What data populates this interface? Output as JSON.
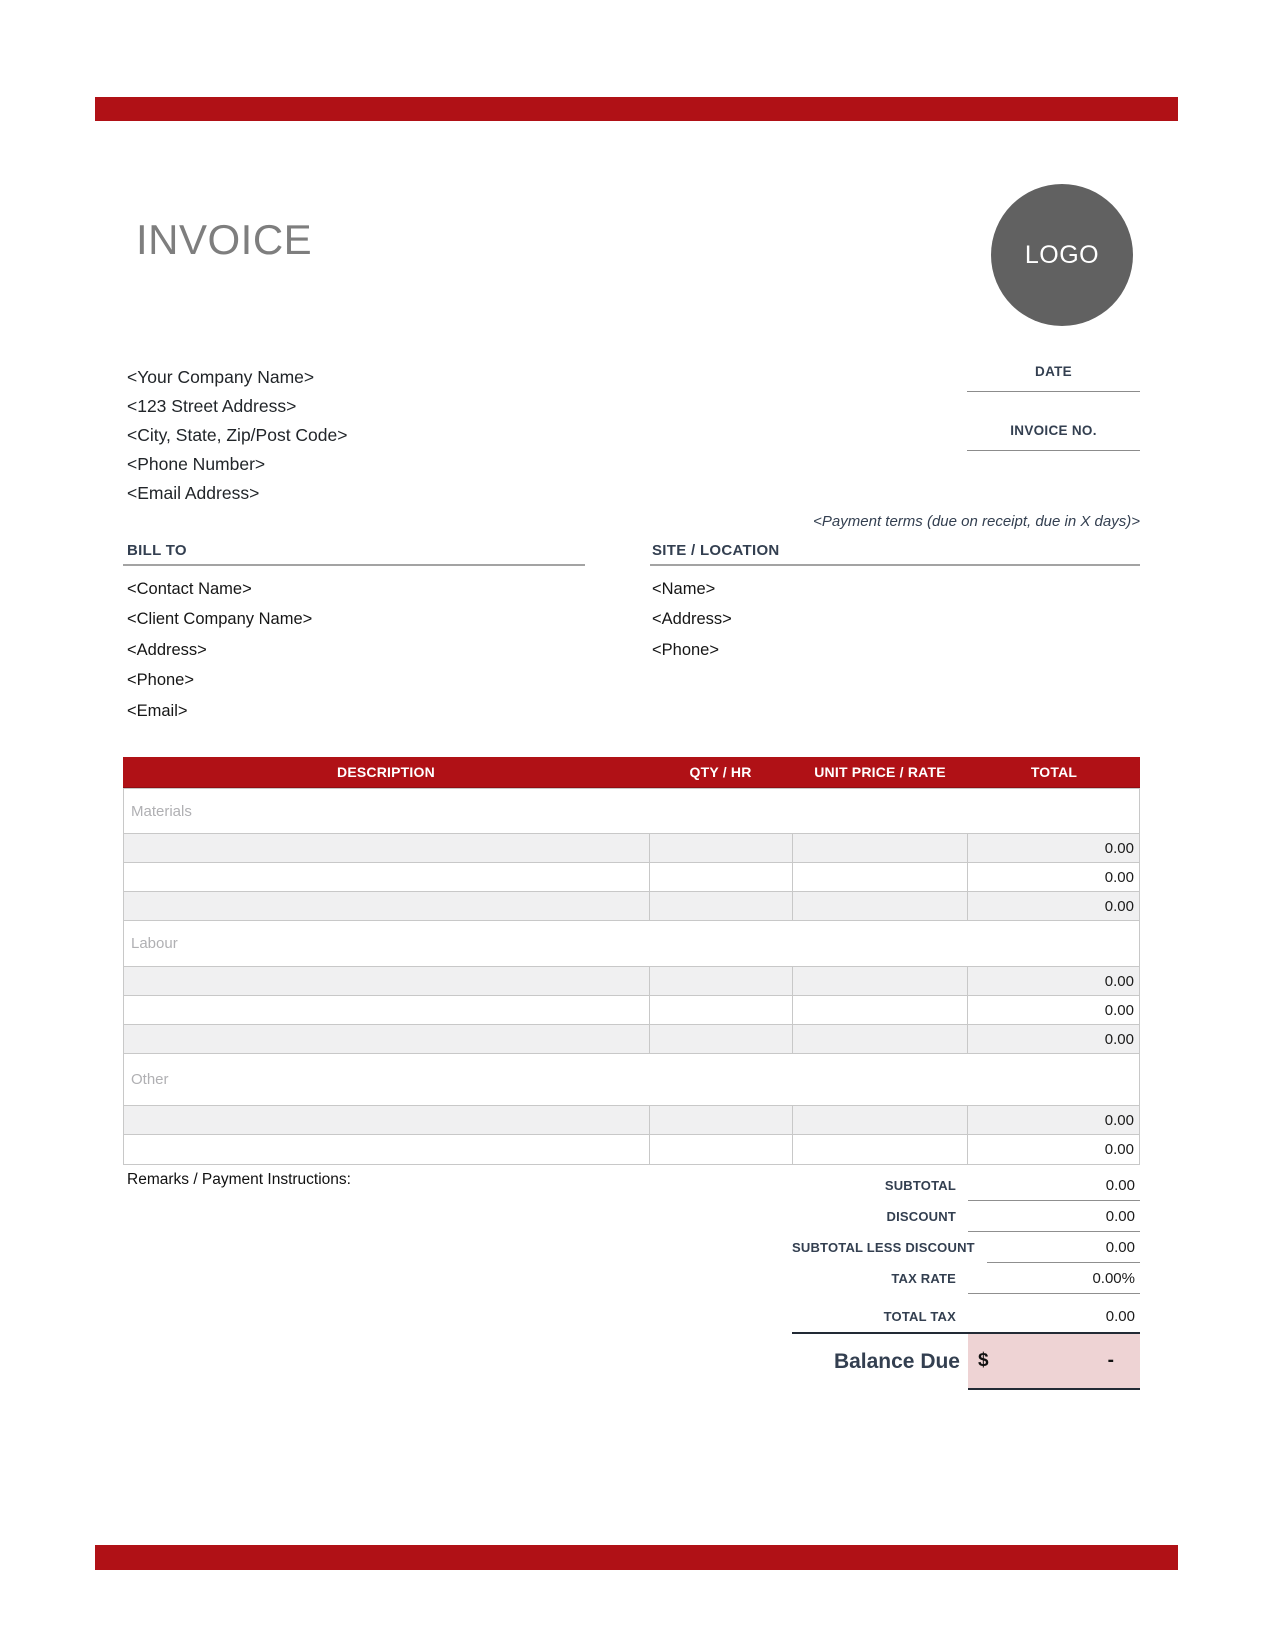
{
  "header": {
    "title": "INVOICE",
    "logo_text": "LOGO"
  },
  "company": {
    "lines": [
      "<Your Company Name>",
      "<123 Street Address>",
      "<City, State, Zip/Post Code>",
      "<Phone Number>",
      "<Email Address>"
    ]
  },
  "meta": {
    "date_label": "DATE",
    "date_value": "",
    "invoice_no_label": "INVOICE NO.",
    "invoice_no_value": "",
    "payment_terms": "<Payment terms (due on receipt, due in X days)>"
  },
  "bill_to": {
    "heading": "BILL TO",
    "lines": [
      "<Contact Name>",
      "<Client Company Name>",
      "<Address>",
      "<Phone>",
      "<Email>"
    ]
  },
  "site": {
    "heading": "SITE / LOCATION",
    "lines": [
      "<Name>",
      "<Address>",
      "<Phone>"
    ]
  },
  "items_table": {
    "columns": [
      "DESCRIPTION",
      "QTY / HR",
      "UNIT PRICE / RATE",
      "TOTAL"
    ],
    "sections": [
      {
        "label": "Materials",
        "rows": [
          {
            "description": "",
            "qty_hr": "",
            "unit_price": "",
            "total": "0.00"
          },
          {
            "description": "",
            "qty_hr": "",
            "unit_price": "",
            "total": "0.00"
          },
          {
            "description": "",
            "qty_hr": "",
            "unit_price": "",
            "total": "0.00"
          }
        ]
      },
      {
        "label": "Labour",
        "rows": [
          {
            "description": "",
            "qty_hr": "",
            "unit_price": "",
            "total": "0.00"
          },
          {
            "description": "",
            "qty_hr": "",
            "unit_price": "",
            "total": "0.00"
          },
          {
            "description": "",
            "qty_hr": "",
            "unit_price": "",
            "total": "0.00"
          }
        ]
      },
      {
        "label": "Other",
        "rows": [
          {
            "description": "",
            "qty_hr": "",
            "unit_price": "",
            "total": "0.00"
          },
          {
            "description": "",
            "qty_hr": "",
            "unit_price": "",
            "total": "0.00"
          }
        ]
      }
    ]
  },
  "remarks": {
    "label": "Remarks / Payment Instructions:"
  },
  "summary": {
    "rows": [
      {
        "label": "SUBTOTAL",
        "value": "0.00"
      },
      {
        "label": "DISCOUNT",
        "value": "0.00"
      },
      {
        "label": "SUBTOTAL LESS DISCOUNT",
        "value": "0.00"
      },
      {
        "label": "TAX RATE",
        "value": "0.00%"
      },
      {
        "label": "TOTAL TAX",
        "value": "0.00"
      }
    ],
    "balance": {
      "label": "Balance Due",
      "currency": "$",
      "value": "-"
    }
  },
  "colors": {
    "accent_red": "#B01116",
    "heading_navy": "#333F50",
    "balance_pink": "#EED3D4",
    "logo_gray": "#616161"
  }
}
